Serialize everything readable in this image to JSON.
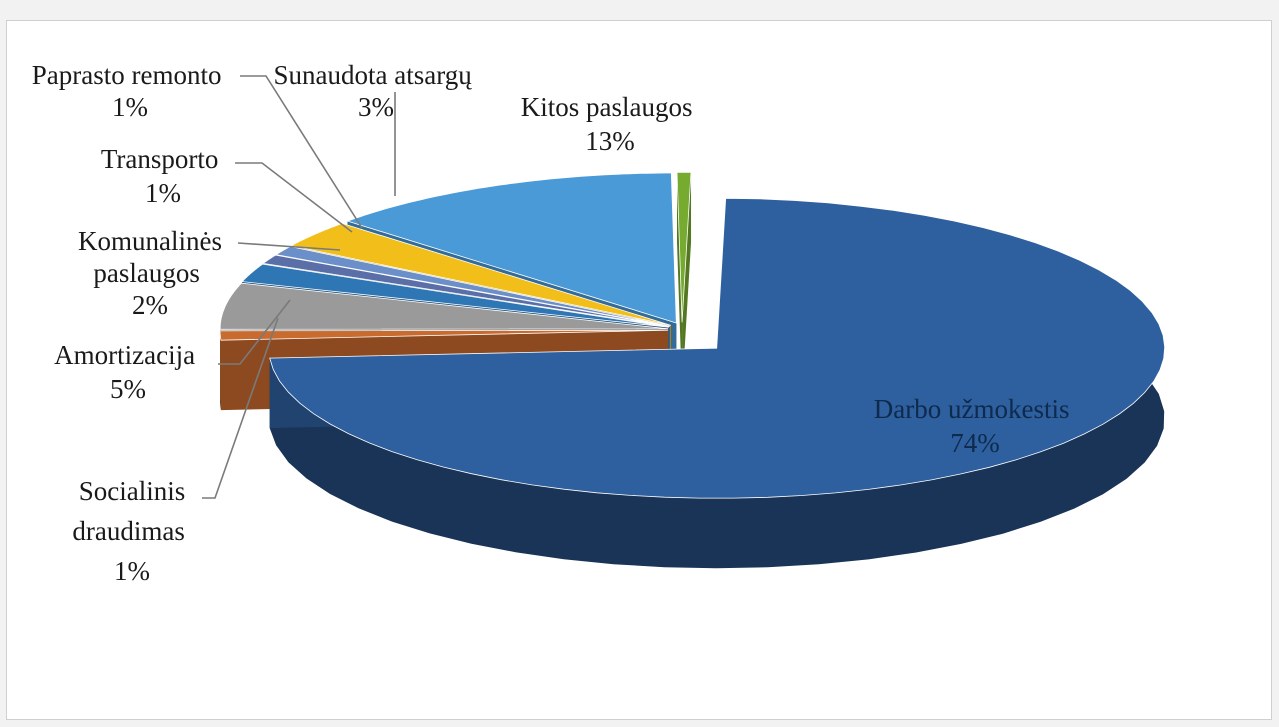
{
  "chart_data": {
    "type": "pie",
    "variant": "3d-exploded",
    "slices": [
      {
        "label": "Darbo užmokestis",
        "value": 74,
        "value_label": "74%",
        "color": "#2e5f9e"
      },
      {
        "label": "Socialinis draudimas",
        "value": 1,
        "value_label": "1%",
        "color": "#c96a2e"
      },
      {
        "label": "Amortizacija",
        "value": 5,
        "value_label": "5%",
        "color": "#9a9a9a"
      },
      {
        "label": "Komunalinės paslaugos",
        "value": 2,
        "value_label": "2%",
        "color": "#2f77b4"
      },
      {
        "label": "Transporto",
        "value": 1,
        "value_label": "1%",
        "color": "#5a6ea8"
      },
      {
        "label": "Paprasto remonto",
        "value": 1,
        "value_label": "1%",
        "color": "#6b8fc8"
      },
      {
        "label": "Sunaudota atsargų",
        "value": 3,
        "value_label": "3%",
        "color": "#f2bf1a"
      },
      {
        "label": "Kitos paslaugos",
        "value": 13,
        "value_label": "13%",
        "color": "#4a9ad8"
      },
      {
        "label": "",
        "value": 0.5,
        "value_label": "",
        "color": "#76ab2f"
      }
    ]
  }
}
